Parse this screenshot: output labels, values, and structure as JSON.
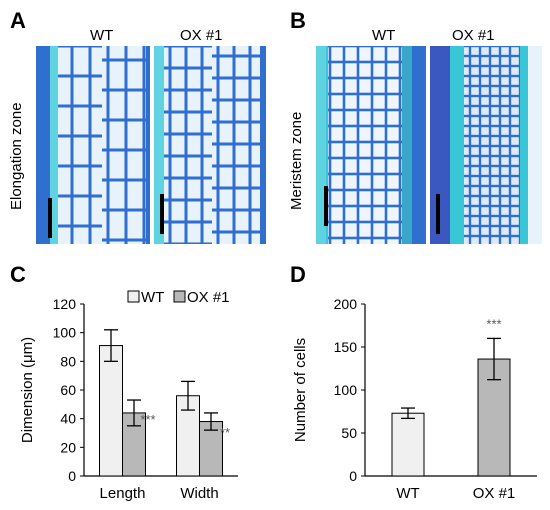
{
  "panels": {
    "a": {
      "letter": "A",
      "zone": "Elongation zone",
      "wt": "WT",
      "ox": "OX #1"
    },
    "b": {
      "letter": "B",
      "zone": "Meristem zone",
      "wt": "WT",
      "ox": "OX #1"
    },
    "c": {
      "letter": "C"
    },
    "d": {
      "letter": "D"
    }
  },
  "colors": {
    "tissue_blue": "#2f6fd0",
    "tissue_cyan": "#39c6d6",
    "cell_light": "#e8f2fb",
    "wt_bar": "#f0f0f0",
    "ox_bar": "#b8b8b8"
  },
  "chart_data": [
    {
      "type": "bar",
      "ylabel": "Dimension (μm)",
      "categories": [
        "Length",
        "Width"
      ],
      "ylim": [
        0,
        120
      ],
      "yticks": [
        "0",
        "20",
        "40",
        "60",
        "80",
        "100",
        "120"
      ],
      "legend_placement": "top",
      "series": [
        {
          "name": "WT",
          "values": [
            91,
            56
          ],
          "errors": [
            11,
            10
          ],
          "significance": [
            "",
            ""
          ]
        },
        {
          "name": "OX #1",
          "values": [
            44,
            38
          ],
          "errors": [
            9,
            6
          ],
          "significance": [
            "***",
            "**"
          ]
        }
      ]
    },
    {
      "type": "bar",
      "ylabel": "Number of cells",
      "categories": [
        "WT",
        "OX #1"
      ],
      "ylim": [
        0,
        200
      ],
      "yticks": [
        "0",
        "50",
        "100",
        "150",
        "200"
      ],
      "values": [
        73,
        136
      ],
      "errors": [
        6,
        24
      ],
      "significance": [
        "",
        "***"
      ]
    }
  ]
}
